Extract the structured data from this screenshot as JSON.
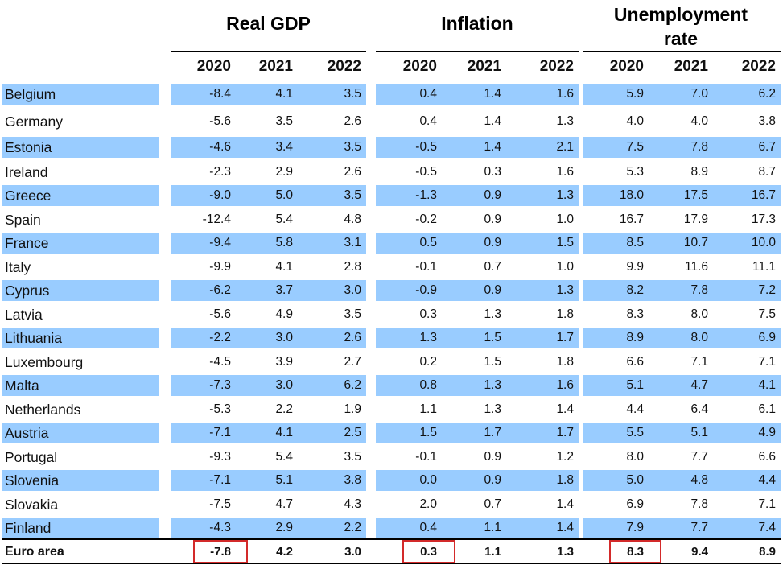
{
  "headers": {
    "groups": [
      "Real GDP",
      "Inflation",
      "Unemployment rate"
    ],
    "years": [
      "2020",
      "2021",
      "2022"
    ]
  },
  "rows": [
    {
      "country": "Belgium",
      "gdp": [
        "-8.4",
        "4.1",
        "3.5"
      ],
      "inflation": [
        "0.4",
        "1.4",
        "1.6"
      ],
      "unemployment": [
        "5.9",
        "7.0",
        "6.2"
      ]
    },
    {
      "country": "Germany",
      "gdp": [
        "-5.6",
        "3.5",
        "2.6"
      ],
      "inflation": [
        "0.4",
        "1.4",
        "1.3"
      ],
      "unemployment": [
        "4.0",
        "4.0",
        "3.8"
      ]
    },
    {
      "country": "Estonia",
      "gdp": [
        "-4.6",
        "3.4",
        "3.5"
      ],
      "inflation": [
        "-0.5",
        "1.4",
        "2.1"
      ],
      "unemployment": [
        "7.5",
        "7.8",
        "6.7"
      ]
    },
    {
      "country": "Ireland",
      "gdp": [
        "-2.3",
        "2.9",
        "2.6"
      ],
      "inflation": [
        "-0.5",
        "0.3",
        "1.6"
      ],
      "unemployment": [
        "5.3",
        "8.9",
        "8.7"
      ]
    },
    {
      "country": "Greece",
      "gdp": [
        "-9.0",
        "5.0",
        "3.5"
      ],
      "inflation": [
        "-1.3",
        "0.9",
        "1.3"
      ],
      "unemployment": [
        "18.0",
        "17.5",
        "16.7"
      ]
    },
    {
      "country": "Spain",
      "gdp": [
        "-12.4",
        "5.4",
        "4.8"
      ],
      "inflation": [
        "-0.2",
        "0.9",
        "1.0"
      ],
      "unemployment": [
        "16.7",
        "17.9",
        "17.3"
      ]
    },
    {
      "country": "France",
      "gdp": [
        "-9.4",
        "5.8",
        "3.1"
      ],
      "inflation": [
        "0.5",
        "0.9",
        "1.5"
      ],
      "unemployment": [
        "8.5",
        "10.7",
        "10.0"
      ]
    },
    {
      "country": "Italy",
      "gdp": [
        "-9.9",
        "4.1",
        "2.8"
      ],
      "inflation": [
        "-0.1",
        "0.7",
        "1.0"
      ],
      "unemployment": [
        "9.9",
        "11.6",
        "11.1"
      ]
    },
    {
      "country": "Cyprus",
      "gdp": [
        "-6.2",
        "3.7",
        "3.0"
      ],
      "inflation": [
        "-0.9",
        "0.9",
        "1.3"
      ],
      "unemployment": [
        "8.2",
        "7.8",
        "7.2"
      ]
    },
    {
      "country": "Latvia",
      "gdp": [
        "-5.6",
        "4.9",
        "3.5"
      ],
      "inflation": [
        "0.3",
        "1.3",
        "1.8"
      ],
      "unemployment": [
        "8.3",
        "8.0",
        "7.5"
      ]
    },
    {
      "country": "Lithuania",
      "gdp": [
        "-2.2",
        "3.0",
        "2.6"
      ],
      "inflation": [
        "1.3",
        "1.5",
        "1.7"
      ],
      "unemployment": [
        "8.9",
        "8.0",
        "6.9"
      ]
    },
    {
      "country": "Luxembourg",
      "gdp": [
        "-4.5",
        "3.9",
        "2.7"
      ],
      "inflation": [
        "0.2",
        "1.5",
        "1.8"
      ],
      "unemployment": [
        "6.6",
        "7.1",
        "7.1"
      ]
    },
    {
      "country": "Malta",
      "gdp": [
        "-7.3",
        "3.0",
        "6.2"
      ],
      "inflation": [
        "0.8",
        "1.3",
        "1.6"
      ],
      "unemployment": [
        "5.1",
        "4.7",
        "4.1"
      ]
    },
    {
      "country": "Netherlands",
      "gdp": [
        "-5.3",
        "2.2",
        "1.9"
      ],
      "inflation": [
        "1.1",
        "1.3",
        "1.4"
      ],
      "unemployment": [
        "4.4",
        "6.4",
        "6.1"
      ]
    },
    {
      "country": "Austria",
      "gdp": [
        "-7.1",
        "4.1",
        "2.5"
      ],
      "inflation": [
        "1.5",
        "1.7",
        "1.7"
      ],
      "unemployment": [
        "5.5",
        "5.1",
        "4.9"
      ]
    },
    {
      "country": "Portugal",
      "gdp": [
        "-9.3",
        "5.4",
        "3.5"
      ],
      "inflation": [
        "-0.1",
        "0.9",
        "1.2"
      ],
      "unemployment": [
        "8.0",
        "7.7",
        "6.6"
      ]
    },
    {
      "country": "Slovenia",
      "gdp": [
        "-7.1",
        "5.1",
        "3.8"
      ],
      "inflation": [
        "0.0",
        "0.9",
        "1.8"
      ],
      "unemployment": [
        "5.0",
        "4.8",
        "4.4"
      ]
    },
    {
      "country": "Slovakia",
      "gdp": [
        "-7.5",
        "4.7",
        "4.3"
      ],
      "inflation": [
        "2.0",
        "0.7",
        "1.4"
      ],
      "unemployment": [
        "6.9",
        "7.8",
        "7.1"
      ]
    },
    {
      "country": "Finland",
      "gdp": [
        "-4.3",
        "2.9",
        "2.2"
      ],
      "inflation": [
        "0.4",
        "1.1",
        "1.4"
      ],
      "unemployment": [
        "7.9",
        "7.7",
        "7.4"
      ]
    }
  ],
  "total": {
    "country": "Euro area",
    "gdp": [
      "-7.8",
      "4.2",
      "3.0"
    ],
    "inflation": [
      "0.3",
      "1.1",
      "1.3"
    ],
    "unemployment": [
      "8.3",
      "9.4",
      "8.9"
    ]
  },
  "colors": {
    "shade": "#99ccff",
    "highlight": "#d32a2a"
  }
}
